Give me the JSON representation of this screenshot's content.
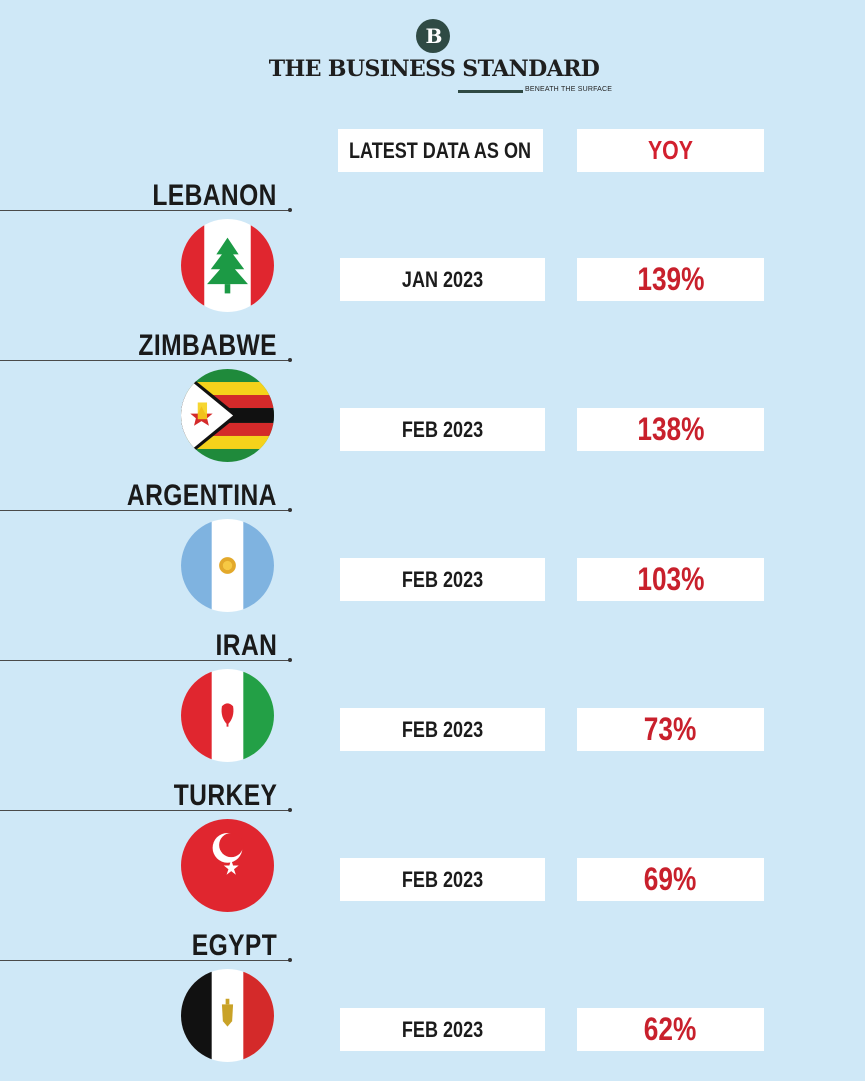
{
  "masthead": {
    "logo_mark": "B",
    "brand": "THE BUSINESS STANDARD",
    "tagline": "BENEATH THE SURFACE"
  },
  "header": {
    "date_label": "LATEST DATA AS ON",
    "yoy_label": "YOY"
  },
  "colors": {
    "background": "#cfe8f7",
    "value_red": "#c8202c",
    "box": "#ffffff"
  },
  "chart_data": {
    "type": "table",
    "columns": [
      "",
      "LATEST DATA AS ON",
      "YOY"
    ],
    "rows": [
      {
        "country": "LEBANON",
        "flag": "lebanon-flag-icon",
        "date": "JAN 2023",
        "yoy": "139%",
        "value": 139
      },
      {
        "country": "ZIMBABWE",
        "flag": "zimbabwe-flag-icon",
        "date": "FEB 2023",
        "yoy": "138%",
        "value": 138
      },
      {
        "country": "ARGENTINA",
        "flag": "argentina-flag-icon",
        "date": "FEB 2023",
        "yoy": "103%",
        "value": 103
      },
      {
        "country": "IRAN",
        "flag": "iran-flag-icon",
        "date": "FEB 2023",
        "yoy": "73%",
        "value": 73
      },
      {
        "country": "TURKEY",
        "flag": "turkey-flag-icon",
        "date": "FEB 2023",
        "yoy": "69%",
        "value": 69
      },
      {
        "country": "EGYPT",
        "flag": "egypt-flag-icon",
        "date": "FEB 2023",
        "yoy": "62%",
        "value": 62
      }
    ]
  }
}
